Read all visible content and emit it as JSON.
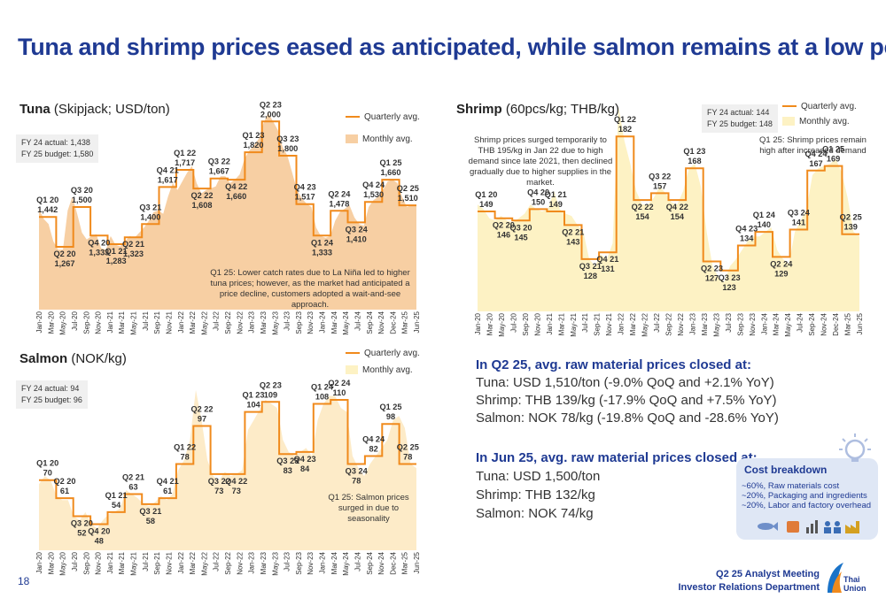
{
  "title": "Tuna and shrimp prices eased as anticipated, while salmon remains at a low point",
  "page_number": "18",
  "footer": {
    "line1": "Q2 25 Analyst Meeting",
    "line2": "Investor Relations Department",
    "logo_text_1": "Thai",
    "logo_text_2": "Union"
  },
  "legend": {
    "quarterly": "Quarterly avg.",
    "monthly": "Monthly avg."
  },
  "colors": {
    "accent": "#f08a1c",
    "tuna_fill": "#f7cfa3",
    "shrimp_fill": "#fdf2c4",
    "salmon_fill": "#fdebc8",
    "title": "#1f3a93"
  },
  "tuna": {
    "name_bold": "Tuna",
    "name_rest": " (Skipjack; USD/ton)",
    "fy24": "FY 24 actual:  1,438",
    "fy25": "FY 25 budget: 1,580",
    "note": "Q1 25: Lower catch rates due to La Niña led to higher tuna prices; however, as the market had anticipated a price decline, customers adopted a wait-and-see approach."
  },
  "shrimp": {
    "name_bold": "Shrimp",
    "name_rest": " (60pcs/kg; THB/kg)",
    "fy24": "FY 24 actual:   144",
    "fy25": "FY 25 budget: 148",
    "note_left": "Shrimp prices surged temporarily to THB 195/kg in Jan 22 due to high demand since late 2021, then declined gradually due to higher supplies in the market.",
    "note_right": "Q1 25: Shrimp prices remain high after increased demand"
  },
  "salmon": {
    "name_bold": "Salmon",
    "name_rest": " (NOK/kg)",
    "fy24": "FY 24 actual:  94",
    "fy25": "FY 25 budget: 96",
    "note": "Q1 25: Salmon prices surged in due to seasonality"
  },
  "summary": {
    "q2_heading": "In Q2 25, avg. raw material prices closed at:",
    "q2_tuna": "Tuna: USD 1,510/ton (-9.0% QoQ and +2.1% YoY)",
    "q2_shrimp": "Shrimp: THB  139/kg (-17.9% QoQ and +7.5% YoY)",
    "q2_salmon": "Salmon:  NOK  78/kg  (-19.8%  QoQ  and  -28.6%  YoY)",
    "jun_heading": "In Jun 25, avg. raw material prices closed at:",
    "jun_tuna": "Tuna: USD 1,500/ton",
    "jun_shrimp": "Shrimp: THB 132/kg",
    "jun_salmon": "Salmon: NOK 74/kg"
  },
  "cost_breakdown": {
    "title": "Cost breakdown",
    "items": [
      "~60%, Raw materials cost",
      "~20%, Packaging and ingredients",
      "~20%, Labor and factory overhead"
    ]
  },
  "chart_data": [
    {
      "type": "area",
      "title": "Tuna (Skipjack; USD/ton)",
      "x_ticks": [
        "Jan-20",
        "Mar-20",
        "May-20",
        "Jul-20",
        "Sep-20",
        "Nov-20",
        "Jan-21",
        "Mar-21",
        "May-21",
        "Jul-21",
        "Sep-21",
        "Nov-21",
        "Jan-22",
        "Mar-22",
        "May-22",
        "Jul-22",
        "Sep-22",
        "Nov-22",
        "Jan-23",
        "Mar-23",
        "May-23",
        "Jul-23",
        "Sep-23",
        "Nov-23",
        "Jan-24",
        "Mar-24",
        "May-24",
        "Jul-24",
        "Sep-24",
        "Nov-24",
        "Dec-24",
        "Mar-25",
        "Jun-25"
      ],
      "ylim": [
        900,
        2100
      ],
      "series": [
        {
          "name": "Monthly avg.",
          "values": [
            1490,
            1430,
            1400,
            1300,
            1250,
            1250,
            1480,
            1560,
            1460,
            1350,
            1310,
            1330,
            1340,
            1260,
            1250,
            1330,
            1280,
            1270,
            1300,
            1330,
            1320,
            1350,
            1380,
            1420,
            1470,
            1480,
            1460,
            1560,
            1640,
            1600,
            1650,
            1700,
            1740,
            1640,
            1580,
            1600,
            1610,
            1620,
            1680,
            1680,
            1640,
            1660,
            1690,
            1780,
            1830,
            1860,
            1900,
            1990,
            2050,
            2000,
            1950,
            1850,
            1800,
            1700,
            1600,
            1550,
            1520,
            1500,
            1380,
            1330,
            1320,
            1330,
            1420,
            1470,
            1490,
            1510,
            1440,
            1400,
            1390,
            1500,
            1540,
            1560,
            1600,
            1650,
            1660,
            1640,
            1560,
            1500,
            1510,
            1510
          ]
        },
        {
          "name": "Quarterly avg.",
          "values": [
            1442,
            1267,
            1500,
            1333,
            1283,
            1323,
            1400,
            1617,
            1717,
            1608,
            1667,
            1660,
            1820,
            2000,
            1800,
            1517,
            1333,
            1478,
            1410,
            1530,
            1660,
            1510
          ]
        }
      ],
      "quarter_labels": [
        {
          "q": "Q1 20",
          "v": "1,442"
        },
        {
          "q": "Q2 20",
          "v": "1,267"
        },
        {
          "q": "Q3 20",
          "v": "1,500"
        },
        {
          "q": "Q4 20",
          "v": "1,333"
        },
        {
          "q": "Q1 21",
          "v": "1,283"
        },
        {
          "q": "Q2 21",
          "v": "1,323"
        },
        {
          "q": "Q3 21",
          "v": "1,400"
        },
        {
          "q": "Q4 21",
          "v": "1,617"
        },
        {
          "q": "Q1 22",
          "v": "1,717"
        },
        {
          "q": "Q2 22",
          "v": "1,608"
        },
        {
          "q": "Q3 22",
          "v": "1,667"
        },
        {
          "q": "Q4 22",
          "v": "1,660"
        },
        {
          "q": "Q1 23",
          "v": "1,820"
        },
        {
          "q": "Q2 23",
          "v": "2,000"
        },
        {
          "q": "Q3 23",
          "v": "1,800"
        },
        {
          "q": "Q4 23",
          "v": "1,517"
        },
        {
          "q": "Q1 24",
          "v": "1,333"
        },
        {
          "q": "Q2 24",
          "v": "1,478"
        },
        {
          "q": "Q3 24",
          "v": "1,410"
        },
        {
          "q": "Q4 24",
          "v": "1,530"
        },
        {
          "q": "Q1 25",
          "v": "1,660"
        },
        {
          "q": "Q2 25",
          "v": "1,510"
        }
      ]
    },
    {
      "type": "area",
      "title": "Shrimp (60pcs/kg; THB/kg)",
      "x_ticks": [
        "Jan-20",
        "Mar-20",
        "May-20",
        "Jul-20",
        "Sep-20",
        "Nov-20",
        "Jan-21",
        "Mar-21",
        "May-21",
        "Jul-21",
        "Sep-21",
        "Nov-21",
        "Jan-22",
        "Mar-22",
        "May-22",
        "Jul-22",
        "Sep-22",
        "Nov-22",
        "Jan-23",
        "Mar-23",
        "May-23",
        "Jul-23",
        "Sep-23",
        "Nov-23",
        "Jan-24",
        "Mar-24",
        "May-24",
        "Jul-24",
        "Sep-24",
        "Nov-24",
        "Dec-24",
        "Mar-25",
        "Jun-25"
      ],
      "ylim": [
        105,
        200
      ],
      "series": [
        {
          "name": "Monthly avg.",
          "values": [
            152,
            150,
            146,
            145,
            147,
            145,
            144,
            146,
            148,
            152,
            150,
            149,
            150,
            158,
            150,
            148,
            147,
            143,
            140,
            128,
            125,
            130,
            128,
            135,
            195,
            180,
            170,
            158,
            152,
            152,
            155,
            160,
            157,
            153,
            152,
            158,
            168,
            170,
            160,
            140,
            125,
            120,
            118,
            125,
            128,
            132,
            136,
            138,
            138,
            140,
            142,
            132,
            128,
            126,
            140,
            145,
            150,
            165,
            168,
            169,
            170,
            172,
            166,
            155,
            140,
            138
          ]
        },
        {
          "name": "Quarterly avg.",
          "values": [
            149,
            146,
            145,
            150,
            149,
            143,
            128,
            131,
            182,
            154,
            157,
            154,
            168,
            127,
            123,
            134,
            140,
            129,
            141,
            167,
            169,
            139
          ]
        }
      ],
      "quarter_labels": [
        {
          "q": "Q1 20",
          "v": "149"
        },
        {
          "q": "Q2 20",
          "v": "146"
        },
        {
          "q": "Q3 20",
          "v": "145"
        },
        {
          "q": "Q4 20",
          "v": "150"
        },
        {
          "q": "Q1 21",
          "v": "149"
        },
        {
          "q": "Q2 21",
          "v": "143"
        },
        {
          "q": "Q3 21",
          "v": "128"
        },
        {
          "q": "Q4 21",
          "v": "131"
        },
        {
          "q": "Q1 22",
          "v": "182"
        },
        {
          "q": "Q2 22",
          "v": "154"
        },
        {
          "q": "Q3 22",
          "v": "157"
        },
        {
          "q": "Q4 22",
          "v": "154"
        },
        {
          "q": "Q1 23",
          "v": "168"
        },
        {
          "q": "Q2 23",
          "v": "127"
        },
        {
          "q": "Q3 23",
          "v": "123"
        },
        {
          "q": "Q4 23",
          "v": "134"
        },
        {
          "q": "Q1 24",
          "v": "140"
        },
        {
          "q": "Q2 24",
          "v": "129"
        },
        {
          "q": "Q3 24",
          "v": "141"
        },
        {
          "q": "Q4 24",
          "v": "167"
        },
        {
          "q": "Q1 25",
          "v": "169"
        },
        {
          "q": "Q2 25",
          "v": "139"
        }
      ]
    },
    {
      "type": "area",
      "title": "Salmon (NOK/kg)",
      "x_ticks": [
        "Jan-20",
        "Mar-20",
        "May-20",
        "Jul-20",
        "Sep-20",
        "Nov-20",
        "Jan-21",
        "Mar-21",
        "May-21",
        "Jul-21",
        "Sep-21",
        "Nov-21",
        "Jan-22",
        "Mar-22",
        "May-22",
        "Jul-22",
        "Sep-22",
        "Nov-22",
        "Jan-23",
        "Mar-23",
        "May-23",
        "Jul-23",
        "Sep-23",
        "Nov-23",
        "Jan-24",
        "Mar-24",
        "May-24",
        "Jul-24",
        "Sep-24",
        "Nov-24",
        "Dec-24",
        "Mar-25",
        "Jun-25"
      ],
      "ylim": [
        35,
        125
      ],
      "series": [
        {
          "name": "Monthly avg.",
          "values": [
            68,
            72,
            70,
            62,
            60,
            60,
            52,
            50,
            54,
            48,
            46,
            50,
            53,
            54,
            56,
            65,
            63,
            61,
            58,
            57,
            59,
            62,
            60,
            63,
            75,
            80,
            90,
            115,
            100,
            80,
            72,
            70,
            74,
            72,
            73,
            75,
            95,
            100,
            105,
            110,
            108,
            106,
            90,
            84,
            82,
            84,
            86,
            82,
            100,
            108,
            112,
            112,
            106,
            104,
            82,
            76,
            72,
            78,
            82,
            86,
            90,
            100,
            102,
            96,
            78,
            76
          ]
        },
        {
          "name": "Quarterly avg.",
          "values": [
            70,
            61,
            52,
            48,
            54,
            63,
            58,
            61,
            78,
            97,
            73,
            73,
            104,
            109,
            83,
            84,
            108,
            110,
            78,
            82,
            98,
            78
          ]
        }
      ],
      "quarter_labels": [
        {
          "q": "Q1 20",
          "v": "70"
        },
        {
          "q": "Q2 20",
          "v": "61"
        },
        {
          "q": "Q3 20",
          "v": "52"
        },
        {
          "q": "Q4 20",
          "v": "48"
        },
        {
          "q": "Q1 21",
          "v": "54"
        },
        {
          "q": "Q2 21",
          "v": "63"
        },
        {
          "q": "Q3 21",
          "v": "58"
        },
        {
          "q": "Q4 21",
          "v": "61"
        },
        {
          "q": "Q1 22",
          "v": "78"
        },
        {
          "q": "Q2 22",
          "v": "97"
        },
        {
          "q": "Q3 22",
          "v": "73"
        },
        {
          "q": "Q4 22",
          "v": "73"
        },
        {
          "q": "Q1 23",
          "v": "104"
        },
        {
          "q": "Q2 23",
          "v": "109"
        },
        {
          "q": "Q3 23",
          "v": "83"
        },
        {
          "q": "Q4 23",
          "v": "84"
        },
        {
          "q": "Q1 24",
          "v": "108"
        },
        {
          "q": "Q2 24",
          "v": "110"
        },
        {
          "q": "Q3 24",
          "v": "78"
        },
        {
          "q": "Q4 24",
          "v": "82"
        },
        {
          "q": "Q1 25",
          "v": "98"
        },
        {
          "q": "Q2 25",
          "v": "78"
        }
      ]
    }
  ]
}
